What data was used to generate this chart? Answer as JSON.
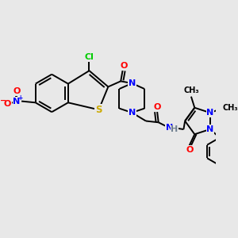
{
  "bg_color": "#e8e8e8",
  "bond_color": "#000000",
  "bond_width": 1.4,
  "atom_colors": {
    "Cl": "#00cc00",
    "N": "#0000ff",
    "O": "#ff0000",
    "S": "#ccaa00",
    "H": "#708090",
    "C": "#000000"
  },
  "fs": 8.0,
  "fs2": 7.0
}
